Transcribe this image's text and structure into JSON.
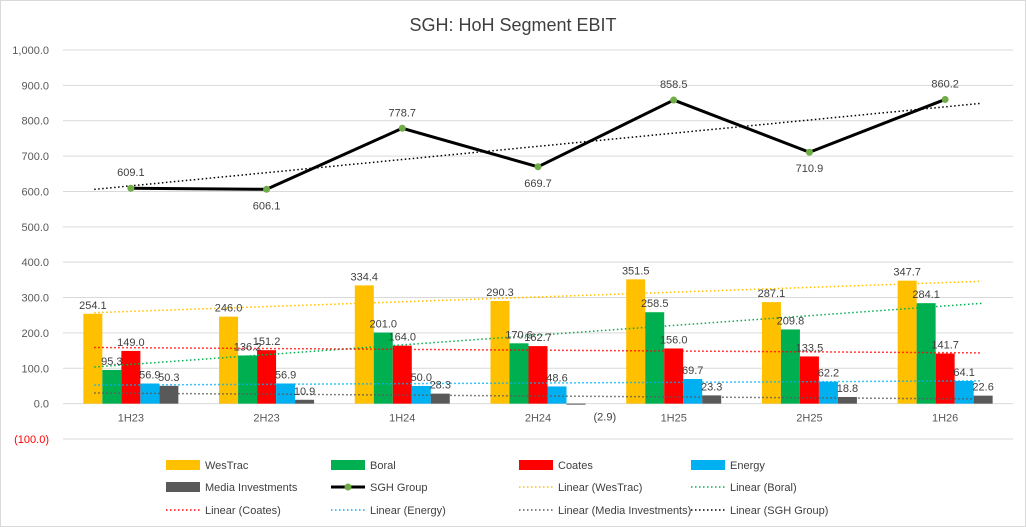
{
  "chart_data": {
    "type": "bar",
    "title": "SGH: HoH Segment EBIT",
    "xlabel": "",
    "ylabel": "",
    "ylim": [
      -100,
      1000
    ],
    "ytick_labels": [
      "(100.0)",
      "0.0",
      "100.0",
      "200.0",
      "300.0",
      "400.0",
      "500.0",
      "600.0",
      "700.0",
      "800.0",
      "900.0",
      "1,000.0"
    ],
    "ytick_values": [
      -100,
      0,
      100,
      200,
      300,
      400,
      500,
      600,
      700,
      800,
      900,
      1000
    ],
    "grid": true,
    "legend_position": "bottom",
    "categories": [
      "1H23",
      "2H23",
      "1H24",
      "2H24",
      "1H25",
      "2H25",
      "1H26"
    ],
    "series": [
      {
        "name": "WesTrac",
        "type": "bar",
        "color": "#ffc000",
        "values": [
          254.1,
          246.0,
          334.4,
          290.3,
          351.5,
          287.1,
          347.7
        ],
        "labels": [
          "254.1",
          "246.0",
          "334.4",
          "290.3",
          "351.5",
          "287.1",
          "347.7"
        ]
      },
      {
        "name": "Boral",
        "type": "bar",
        "color": "#00b050",
        "values": [
          95.3,
          136.2,
          201.0,
          170.6,
          258.5,
          209.8,
          284.1
        ],
        "labels": [
          "95.3",
          "136.2",
          "201.0",
          "170.6",
          "258.5",
          "209.8",
          "284.1"
        ]
      },
      {
        "name": "Coates",
        "type": "bar",
        "color": "#ff0000",
        "values": [
          149.0,
          151.2,
          164.0,
          162.7,
          156.0,
          133.5,
          141.7
        ],
        "labels": [
          "149.0",
          "151.2",
          "164.0",
          "162.7",
          "156.0",
          "133.5",
          "141.7"
        ]
      },
      {
        "name": "Energy",
        "type": "bar",
        "color": "#00b0f0",
        "values": [
          56.9,
          56.9,
          50.0,
          48.6,
          69.7,
          62.2,
          64.1
        ],
        "labels": [
          "56.9",
          "56.9",
          "50.0",
          "48.6",
          "69.7",
          "62.2",
          "64.1"
        ]
      },
      {
        "name": "Media Investments",
        "type": "bar",
        "color": "#595959",
        "values": [
          50.3,
          10.9,
          28.3,
          -2.9,
          23.3,
          18.8,
          22.6
        ],
        "labels": [
          "50.3",
          "10.9",
          "28.3",
          "(2.9)",
          "23.3",
          "18.8",
          "22.6"
        ]
      },
      {
        "name": "SGH Group",
        "type": "line",
        "color": "#000000",
        "marker_color": "#70ad47",
        "values": [
          609.1,
          606.1,
          778.7,
          669.7,
          858.5,
          710.9,
          860.2
        ],
        "labels": [
          "609.1",
          "606.1",
          "778.7",
          "669.7",
          "858.5",
          "710.9",
          "860.2"
        ]
      }
    ],
    "trendlines": [
      {
        "name": "Linear (WesTrac)",
        "series": "WesTrac",
        "color": "#ffc000"
      },
      {
        "name": "Linear (Boral)",
        "series": "Boral",
        "color": "#00b050"
      },
      {
        "name": "Linear (Coates)",
        "series": "Coates",
        "color": "#ff0000"
      },
      {
        "name": "Linear (Energy)",
        "series": "Energy",
        "color": "#00b0f0"
      },
      {
        "name": "Linear (Media Investments)",
        "series": "Media Investments",
        "color": "#595959"
      },
      {
        "name": "Linear (SGH Group)",
        "series": "SGH Group",
        "color": "#000000"
      }
    ]
  }
}
